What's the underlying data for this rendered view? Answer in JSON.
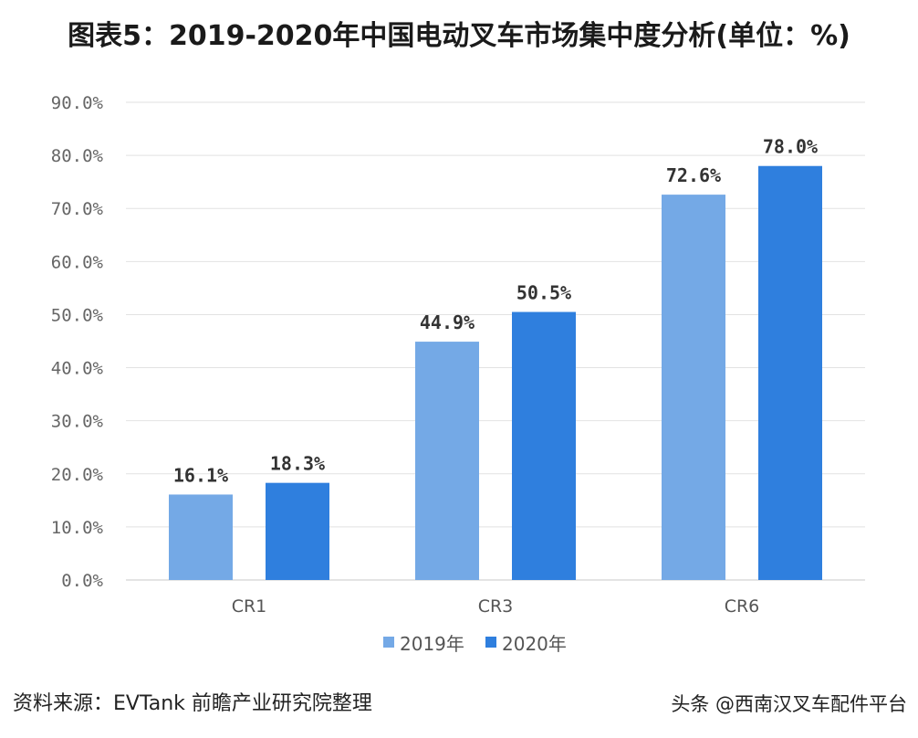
{
  "title": "图表5：2019-2020年中国电动叉车市场集中度分析(单位：%)",
  "source": "资料来源：EVTank 前瞻产业研究院整理",
  "attribution": "头条 @西南汉叉车配件平台",
  "chart_data": {
    "type": "bar",
    "title": "图表5：2019-2020年中国电动叉车市场集中度分析(单位：%)",
    "categories": [
      "CR1",
      "CR3",
      "CR6"
    ],
    "series": [
      {
        "name": "2019年",
        "values": [
          16.1,
          44.9,
          72.6
        ],
        "labels": [
          "16.1%",
          "44.9%",
          "72.6%"
        ],
        "color": "#74a9e6"
      },
      {
        "name": "2020年",
        "values": [
          18.3,
          50.5,
          78.0
        ],
        "labels": [
          "18.3%",
          "50.5%",
          "78.0%"
        ],
        "color": "#2f7fde"
      }
    ],
    "y_ticks": [
      "0.0%",
      "10.0%",
      "20.0%",
      "30.0%",
      "40.0%",
      "50.0%",
      "60.0%",
      "70.0%",
      "80.0%",
      "90.0%"
    ],
    "ylim": [
      0,
      90
    ],
    "xlabel": "",
    "ylabel": "",
    "grid": true,
    "legend": "bottom-center"
  }
}
